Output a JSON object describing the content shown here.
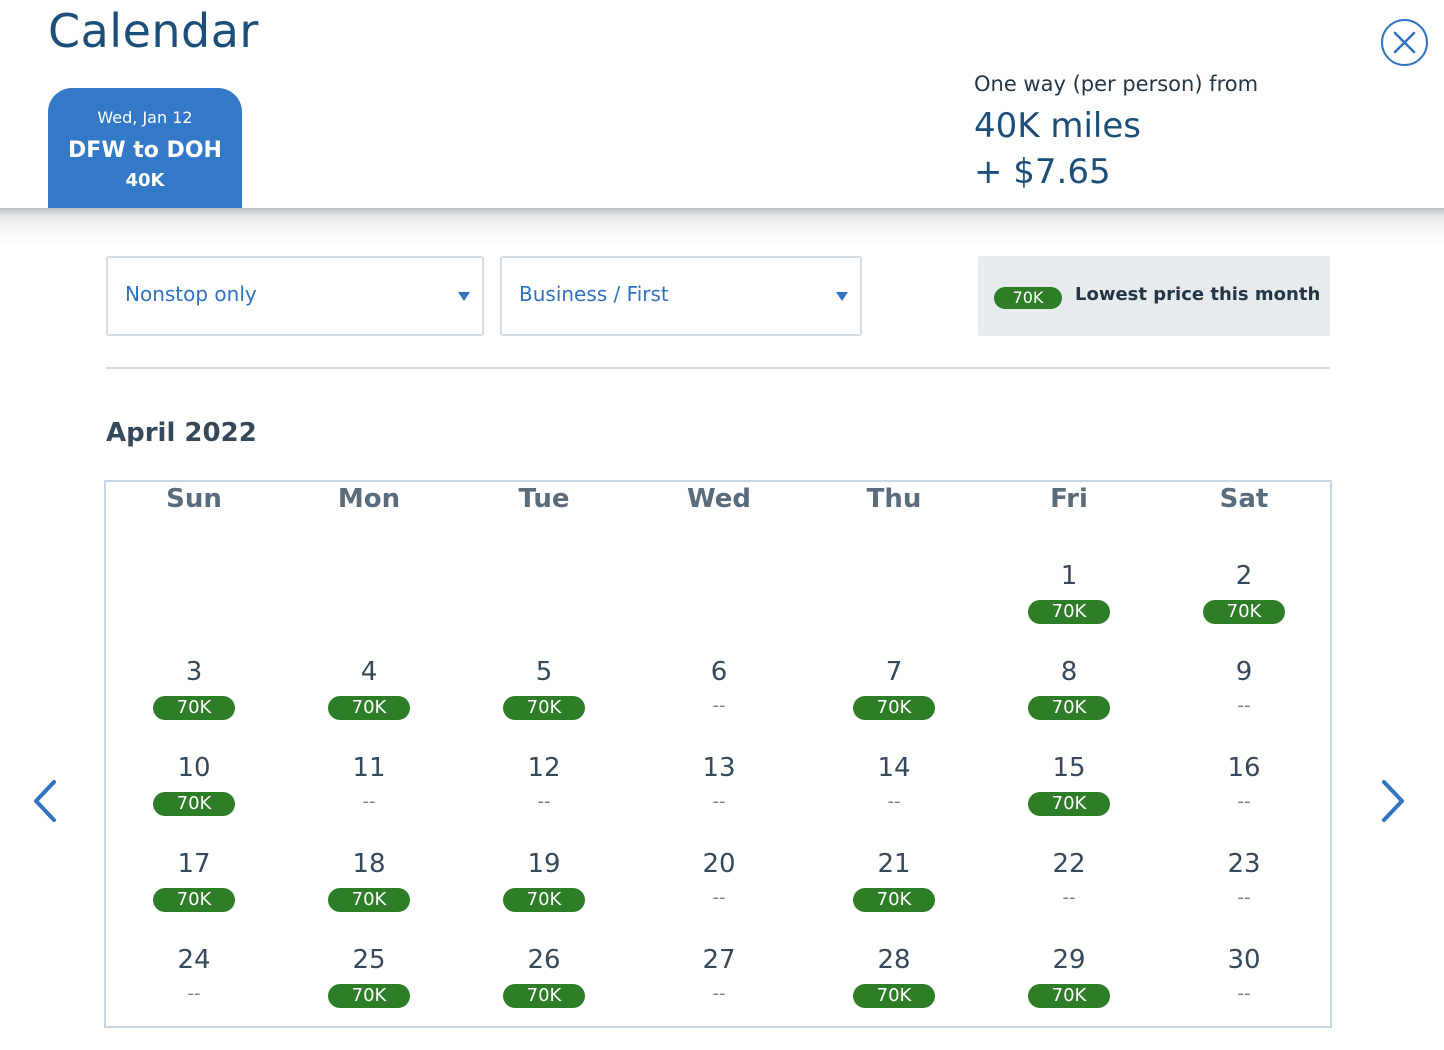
{
  "header": {
    "title": "Calendar",
    "close_icon": "close-circle-icon"
  },
  "trip": {
    "date": "Wed, Jan 12",
    "route": "DFW to DOH",
    "miles": "40K"
  },
  "fare": {
    "label": "One way (per person) from",
    "miles": "40K miles",
    "cash": "+ $7.65"
  },
  "filters": {
    "stops": "Nonstop only",
    "cabin": "Business / First"
  },
  "legend": {
    "badge": "70K",
    "text": "Lowest price this month"
  },
  "colors": {
    "brand_blue": "#3478c8",
    "link_blue": "#2f73c2",
    "lowest_green": "#2e7d27"
  },
  "calendar": {
    "month": "April 2022",
    "weekdays": [
      "Sun",
      "Mon",
      "Tue",
      "Wed",
      "Thu",
      "Fri",
      "Sat"
    ],
    "start_weekday": 5,
    "no_price_text": "--",
    "days": [
      {
        "day": "1",
        "price": "70K"
      },
      {
        "day": "2",
        "price": "70K"
      },
      {
        "day": "3",
        "price": "70K"
      },
      {
        "day": "4",
        "price": "70K"
      },
      {
        "day": "5",
        "price": "70K"
      },
      {
        "day": "6",
        "price": null
      },
      {
        "day": "7",
        "price": "70K"
      },
      {
        "day": "8",
        "price": "70K"
      },
      {
        "day": "9",
        "price": null
      },
      {
        "day": "10",
        "price": "70K"
      },
      {
        "day": "11",
        "price": null
      },
      {
        "day": "12",
        "price": null
      },
      {
        "day": "13",
        "price": null
      },
      {
        "day": "14",
        "price": null
      },
      {
        "day": "15",
        "price": "70K"
      },
      {
        "day": "16",
        "price": null
      },
      {
        "day": "17",
        "price": "70K"
      },
      {
        "day": "18",
        "price": "70K"
      },
      {
        "day": "19",
        "price": "70K"
      },
      {
        "day": "20",
        "price": null
      },
      {
        "day": "21",
        "price": "70K"
      },
      {
        "day": "22",
        "price": null
      },
      {
        "day": "23",
        "price": null
      },
      {
        "day": "24",
        "price": null
      },
      {
        "day": "25",
        "price": "70K"
      },
      {
        "day": "26",
        "price": "70K"
      },
      {
        "day": "27",
        "price": null
      },
      {
        "day": "28",
        "price": "70K"
      },
      {
        "day": "29",
        "price": "70K"
      },
      {
        "day": "30",
        "price": null
      }
    ]
  },
  "nav": {
    "prev_icon": "chevron-left-icon",
    "next_icon": "chevron-right-icon"
  }
}
